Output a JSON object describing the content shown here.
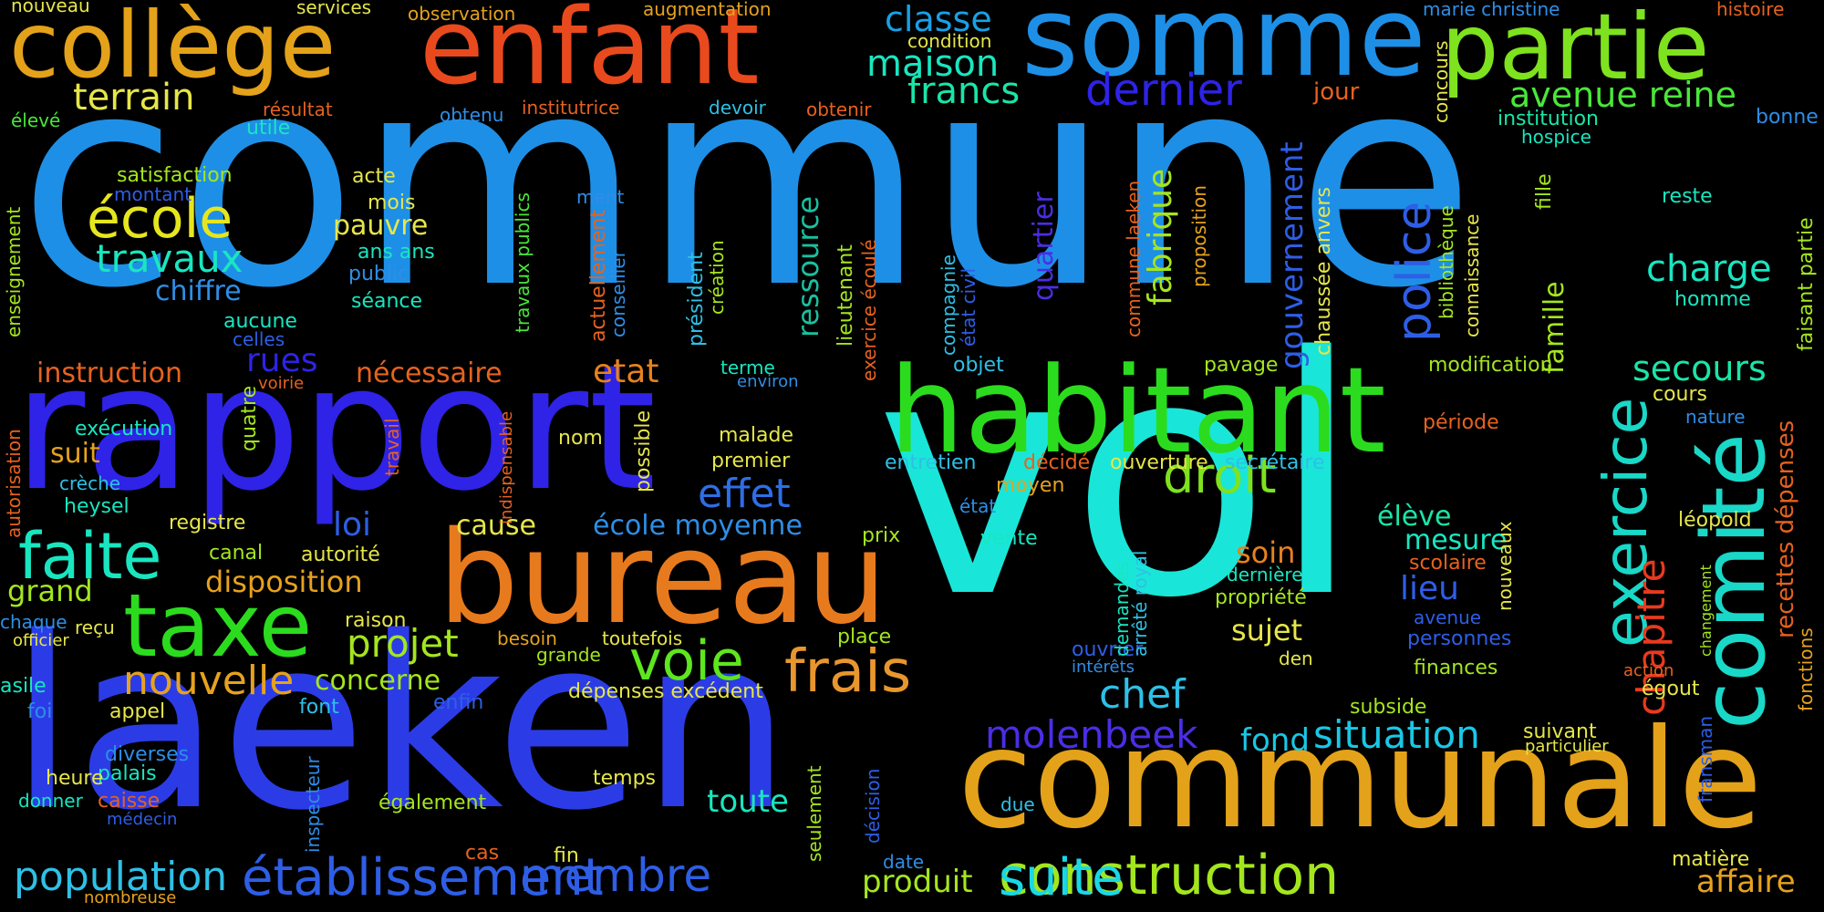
{
  "words": [
    {
      "text": "commune",
      "color": "#1e8fe6"
    },
    {
      "text": "vol",
      "color": "#19e6d8"
    },
    {
      "text": "laeken",
      "color": "#2b3ce6"
    },
    {
      "text": "rapport",
      "color": "#2e23e6"
    },
    {
      "text": "communale",
      "color": "#e4a21a"
    },
    {
      "text": "bureau",
      "color": "#e87a1e"
    },
    {
      "text": "habitant",
      "color": "#2bdc1e"
    },
    {
      "text": "somme",
      "color": "#1e8fe6"
    },
    {
      "text": "enfant",
      "color": "#e84a1e"
    },
    {
      "text": "collège",
      "color": "#e4a21a"
    },
    {
      "text": "partie",
      "color": "#7ee21e"
    },
    {
      "text": "taxe",
      "color": "#2bdc1e"
    },
    {
      "text": "comité",
      "color": "#19d8c8"
    },
    {
      "text": "construction",
      "color": "#a4e61e"
    },
    {
      "text": "établissement",
      "color": "#2e5ee6"
    },
    {
      "text": "suite",
      "color": "#19d8e6"
    },
    {
      "text": "faite",
      "color": "#19e6c0"
    },
    {
      "text": "frais",
      "color": "#e8962e"
    },
    {
      "text": "voie",
      "color": "#5ee61e"
    },
    {
      "text": "exercice",
      "color": "#19d8c8"
    },
    {
      "text": "école",
      "color": "#e6e61e"
    },
    {
      "text": "membre",
      "color": "#2e5ee6"
    },
    {
      "text": "population",
      "color": "#2ec0e6"
    },
    {
      "text": "droit",
      "color": "#7ee21e"
    },
    {
      "text": "nouvelle",
      "color": "#e6a21e"
    },
    {
      "text": "police",
      "color": "#2e5ee6"
    },
    {
      "text": "dernier",
      "color": "#2e23e6"
    },
    {
      "text": "chef",
      "color": "#2ec0e6"
    },
    {
      "text": "projet",
      "color": "#a4e61e"
    },
    {
      "text": "molenbeek",
      "color": "#4a2ee6"
    },
    {
      "text": "situation",
      "color": "#19c8e6"
    },
    {
      "text": "chapitre",
      "color": "#e83a1e"
    },
    {
      "text": "effet",
      "color": "#2e6ee6"
    },
    {
      "text": "travaux",
      "color": "#19e6c0"
    },
    {
      "text": "maison",
      "color": "#19e6c0"
    },
    {
      "text": "francs",
      "color": "#19e6a8"
    },
    {
      "text": "classe",
      "color": "#19a0e6"
    },
    {
      "text": "terrain",
      "color": "#e6e64a"
    },
    {
      "text": "avenue reine",
      "color": "#4ae63a"
    },
    {
      "text": "gouvernement",
      "color": "#2e5ee6"
    },
    {
      "text": "fabrique",
      "color": "#a4e61e"
    },
    {
      "text": "charge",
      "color": "#19e6c0"
    },
    {
      "text": "secours",
      "color": "#19e6a8"
    },
    {
      "text": "ressource",
      "color": "#19c0a0"
    },
    {
      "text": "quartier",
      "color": "#4a2ee6"
    },
    {
      "text": "recettes dépenses",
      "color": "#e6621e"
    },
    {
      "text": "produit",
      "color": "#a4e61e"
    },
    {
      "text": "toute",
      "color": "#19e6c0"
    },
    {
      "text": "fond",
      "color": "#19c8e6"
    },
    {
      "text": "lieu",
      "color": "#2e5ee6"
    },
    {
      "text": "soin",
      "color": "#e6821e"
    },
    {
      "text": "sujet",
      "color": "#e6e64a"
    },
    {
      "text": "mesure",
      "color": "#19e6c0"
    },
    {
      "text": "élève",
      "color": "#19e6a8"
    },
    {
      "text": "famille",
      "color": "#a4e61e"
    },
    {
      "text": "instruction",
      "color": "#e6621e"
    },
    {
      "text": "nécessaire",
      "color": "#e6621e"
    },
    {
      "text": "rues",
      "color": "#2e23e6"
    },
    {
      "text": "etat",
      "color": "#e6821e"
    },
    {
      "text": "loi",
      "color": "#2e5ee6"
    },
    {
      "text": "cause",
      "color": "#e6e64a"
    },
    {
      "text": "école moyenne",
      "color": "#2e8ee6"
    },
    {
      "text": "disposition",
      "color": "#e6a21e"
    },
    {
      "text": "concerne",
      "color": "#a4e61e"
    },
    {
      "text": "grand",
      "color": "#a4e61e"
    },
    {
      "text": "chiffre",
      "color": "#2e8ee6"
    },
    {
      "text": "pauvre",
      "color": "#e6e64a"
    },
    {
      "text": "suit",
      "color": "#e6a21e"
    },
    {
      "text": "affaire",
      "color": "#e6a21e"
    },
    {
      "text": "nouveau",
      "color": "#e6e64a"
    },
    {
      "text": "services",
      "color": "#e6e64a"
    },
    {
      "text": "observation",
      "color": "#e6a21e"
    },
    {
      "text": "augmentation",
      "color": "#e6a21e"
    },
    {
      "text": "condition",
      "color": "#e6e64a"
    },
    {
      "text": "marie christine",
      "color": "#2e8ee6"
    },
    {
      "text": "histoire",
      "color": "#e6621e"
    },
    {
      "text": "élevé",
      "color": "#4ae63a"
    },
    {
      "text": "résultat",
      "color": "#e6621e"
    },
    {
      "text": "obtenu",
      "color": "#2e8ee6"
    },
    {
      "text": "institutrice",
      "color": "#e6621e"
    },
    {
      "text": "devoir",
      "color": "#2ec0e6"
    },
    {
      "text": "obtenir",
      "color": "#e6621e"
    },
    {
      "text": "jour",
      "color": "#e6621e"
    },
    {
      "text": "institution",
      "color": "#19e6a8"
    },
    {
      "text": "bonne",
      "color": "#2e8ee6"
    },
    {
      "text": "hospice",
      "color": "#19e6c0"
    },
    {
      "text": "utile",
      "color": "#19e6c0"
    },
    {
      "text": "satisfaction",
      "color": "#a4e61e"
    },
    {
      "text": "montant",
      "color": "#2e5ee6"
    },
    {
      "text": "acte",
      "color": "#e6e64a"
    },
    {
      "text": "mois",
      "color": "#e6e64a"
    },
    {
      "text": "ment",
      "color": "#2e8ee6"
    },
    {
      "text": "ans ans",
      "color": "#19e6c0"
    },
    {
      "text": "public",
      "color": "#2e8ee6"
    },
    {
      "text": "séance",
      "color": "#19e6c0"
    },
    {
      "text": "aucune",
      "color": "#19e6c0"
    },
    {
      "text": "celles",
      "color": "#2e5ee6"
    },
    {
      "text": "cours",
      "color": "#e6e64a"
    },
    {
      "text": "reste",
      "color": "#19e6c0"
    },
    {
      "text": "homme",
      "color": "#19e6c0"
    },
    {
      "text": "terme",
      "color": "#19e6c0"
    },
    {
      "text": "environ",
      "color": "#2e8ee6"
    },
    {
      "text": "objet",
      "color": "#2ec0e6"
    },
    {
      "text": "pavage",
      "color": "#a4e61e"
    },
    {
      "text": "modification",
      "color": "#a4e61e"
    },
    {
      "text": "voirie",
      "color": "#e6621e"
    },
    {
      "text": "nature",
      "color": "#2e8ee6"
    },
    {
      "text": "exécution",
      "color": "#19e6c0"
    },
    {
      "text": "nom",
      "color": "#e6e64a"
    },
    {
      "text": "malade",
      "color": "#e6e64a"
    },
    {
      "text": "premier",
      "color": "#e6e64a"
    },
    {
      "text": "période",
      "color": "#e6621e"
    },
    {
      "text": "entretien",
      "color": "#2ec0e6"
    },
    {
      "text": "décidé",
      "color": "#e6621e"
    },
    {
      "text": "ouverture",
      "color": "#e6e64a"
    },
    {
      "text": "secrétaire",
      "color": "#2ec0e6"
    },
    {
      "text": "moyen",
      "color": "#e6a21e"
    },
    {
      "text": "crèche",
      "color": "#2ec0e6"
    },
    {
      "text": "heysel",
      "color": "#19e6c0"
    },
    {
      "text": "registre",
      "color": "#e6e64a"
    },
    {
      "text": "état",
      "color": "#2e8ee6"
    },
    {
      "text": "léopold",
      "color": "#e6e64a"
    },
    {
      "text": "prix",
      "color": "#a4e61e"
    },
    {
      "text": "vente",
      "color": "#19e6c0"
    },
    {
      "text": "canal",
      "color": "#a4e61e"
    },
    {
      "text": "autorité",
      "color": "#e6e64a"
    },
    {
      "text": "scolaire",
      "color": "#e6621e"
    },
    {
      "text": "dernière",
      "color": "#19e6c0"
    },
    {
      "text": "propriété",
      "color": "#a4e61e"
    },
    {
      "text": "avenue",
      "color": "#2e5ee6"
    },
    {
      "text": "personnes",
      "color": "#2e5ee6"
    },
    {
      "text": "raison",
      "color": "#e6e64a"
    },
    {
      "text": "chaque",
      "color": "#2e8ee6"
    },
    {
      "text": "reçu",
      "color": "#e6e64a"
    },
    {
      "text": "officier",
      "color": "#e6e64a"
    },
    {
      "text": "besoin",
      "color": "#e6a21e"
    },
    {
      "text": "toutefois",
      "color": "#e6e64a"
    },
    {
      "text": "place",
      "color": "#a4e61e"
    },
    {
      "text": "grande",
      "color": "#a4e61e"
    },
    {
      "text": "ouvrier",
      "color": "#2e5ee6"
    },
    {
      "text": "intérêts",
      "color": "#2e8ee6"
    },
    {
      "text": "den",
      "color": "#e6e64a"
    },
    {
      "text": "finances",
      "color": "#a4e61e"
    },
    {
      "text": "action",
      "color": "#e6621e"
    },
    {
      "text": "asile",
      "color": "#19e6c0"
    },
    {
      "text": "foi",
      "color": "#2e8ee6"
    },
    {
      "text": "appel",
      "color": "#e6e64a"
    },
    {
      "text": "font",
      "color": "#2ec0e6"
    },
    {
      "text": "enfin",
      "color": "#2e5ee6"
    },
    {
      "text": "dépenses excédent",
      "color": "#e6e64a"
    },
    {
      "text": "égout",
      "color": "#e6e64a"
    },
    {
      "text": "subside",
      "color": "#a4e61e"
    },
    {
      "text": "suivant",
      "color": "#e6e64a"
    },
    {
      "text": "particulier",
      "color": "#e6e64a"
    },
    {
      "text": "diverses",
      "color": "#2e8ee6"
    },
    {
      "text": "palais",
      "color": "#19e6c0"
    },
    {
      "text": "heure",
      "color": "#e6e64a"
    },
    {
      "text": "caisse",
      "color": "#e6621e"
    },
    {
      "text": "médecin",
      "color": "#2e5ee6"
    },
    {
      "text": "donner",
      "color": "#19e6c0"
    },
    {
      "text": "temps",
      "color": "#e6e64a"
    },
    {
      "text": "également",
      "color": "#a4e61e"
    },
    {
      "text": "due",
      "color": "#2ec0e6"
    },
    {
      "text": "cas",
      "color": "#e6621e"
    },
    {
      "text": "fin",
      "color": "#e6e64a"
    },
    {
      "text": "date",
      "color": "#2e8ee6"
    },
    {
      "text": "matière",
      "color": "#e6e64a"
    },
    {
      "text": "nombreuse",
      "color": "#e6a21e"
    },
    {
      "text": "enseignement",
      "color": "#a4e61e"
    },
    {
      "text": "autorisation",
      "color": "#e6621e"
    },
    {
      "text": "quatre",
      "color": "#a4e61e"
    },
    {
      "text": "travail",
      "color": "#e6621e"
    },
    {
      "text": "indispensable",
      "color": "#e6621e"
    },
    {
      "text": "possible",
      "color": "#e6e64a"
    },
    {
      "text": "travaux publics",
      "color": "#4ae63a"
    },
    {
      "text": "actuellement",
      "color": "#e6621e"
    },
    {
      "text": "conseiller",
      "color": "#2e8ee6"
    },
    {
      "text": "président",
      "color": "#2ec0e6"
    },
    {
      "text": "création",
      "color": "#a4e61e"
    },
    {
      "text": "lieutenant",
      "color": "#a4e61e"
    },
    {
      "text": "exercice écoulé",
      "color": "#e6621e"
    },
    {
      "text": "compagnie",
      "color": "#2ec0e6"
    },
    {
      "text": "état civil",
      "color": "#2e5ee6"
    },
    {
      "text": "commune laeken",
      "color": "#e6621e"
    },
    {
      "text": "proposition",
      "color": "#e6a21e"
    },
    {
      "text": "chaussée anvers",
      "color": "#e6e64a"
    },
    {
      "text": "bibliothèque",
      "color": "#a4e61e"
    },
    {
      "text": "connaissance",
      "color": "#e6e64a"
    },
    {
      "text": "concours",
      "color": "#e6e64a"
    },
    {
      "text": "fille",
      "color": "#a4e61e"
    },
    {
      "text": "faisant partie",
      "color": "#a4e61e"
    },
    {
      "text": "fonctions",
      "color": "#e6a21e"
    },
    {
      "text": "changement",
      "color": "#a4e61e"
    },
    {
      "text": "fransman",
      "color": "#2e5ee6"
    },
    {
      "text": "nouveaux",
      "color": "#e6e64a"
    },
    {
      "text": "demandes",
      "color": "#19e6c0"
    },
    {
      "text": "arrêté royal",
      "color": "#2ec0e6"
    },
    {
      "text": "inspecteur",
      "color": "#2e8ee6"
    },
    {
      "text": "seulement",
      "color": "#a4e61e"
    },
    {
      "text": "décision",
      "color": "#2e5ee6"
    }
  ]
}
